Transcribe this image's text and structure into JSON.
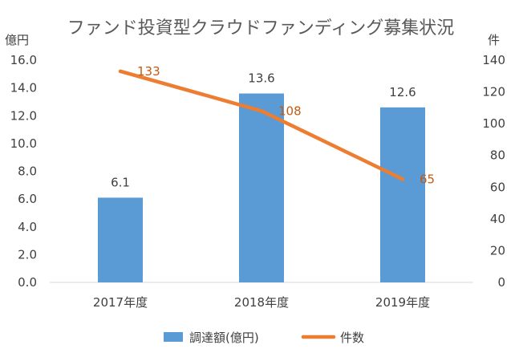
{
  "chart_data": {
    "type": "bar",
    "title": "ファンド投資型クラウドファンディング募集状況",
    "categories": [
      "2017年度",
      "2018年度",
      "2019年度"
    ],
    "series": [
      {
        "name": "調達額(億円)",
        "type": "bar",
        "axis": "left",
        "color": "#5b9bd5",
        "values": [
          6.1,
          13.6,
          12.6
        ],
        "labels": [
          "6.1",
          "13.6",
          "12.6"
        ]
      },
      {
        "name": "件数",
        "type": "line",
        "axis": "right",
        "color": "#ed7d31",
        "values": [
          133,
          108,
          65
        ],
        "labels": [
          "133",
          "108",
          "65"
        ]
      }
    ],
    "y_left": {
      "unit": "億円",
      "ylim": [
        0,
        16
      ],
      "ticks": [
        "0.0",
        "2.0",
        "4.0",
        "6.0",
        "8.0",
        "10.0",
        "12.0",
        "14.0",
        "16.0"
      ]
    },
    "y_right": {
      "unit": "件",
      "ylim": [
        0,
        140
      ],
      "ticks": [
        "0",
        "20",
        "40",
        "60",
        "80",
        "100",
        "120",
        "140"
      ]
    },
    "grid": false,
    "legend_position": "bottom"
  }
}
